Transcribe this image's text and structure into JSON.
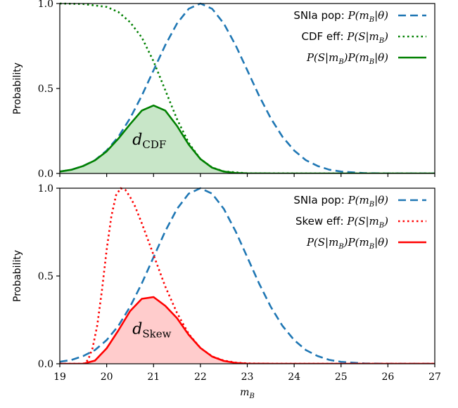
{
  "chart_data": [
    {
      "type": "line",
      "id": "top",
      "ylabel": "Probability",
      "xlim": [
        19,
        27
      ],
      "ylim": [
        0,
        1.0
      ],
      "yticks": [
        0.0,
        0.5,
        1.0
      ],
      "ytick_labels": [
        "0.0",
        "0.5",
        "1.0"
      ],
      "xticks": [
        19,
        20,
        21,
        22,
        23,
        24,
        25,
        26,
        27
      ],
      "xtick_labels_shown": false,
      "legend_position": "top-right",
      "annotation": {
        "main": "d",
        "sub": "CDF",
        "x": 20.55,
        "y": 0.17
      },
      "series": [
        {
          "name": "SNIa pop: P(m_B|θ)",
          "label_prefix": "SNIa pop:",
          "label_math": "P(m",
          "label_sub": "B",
          "label_tail": "|θ)",
          "color": "#1f77b4",
          "style": "dashed",
          "x": [
            19.0,
            19.25,
            19.5,
            19.75,
            20.0,
            20.25,
            20.5,
            20.75,
            21.0,
            21.25,
            21.5,
            21.75,
            22.0,
            22.25,
            22.5,
            22.75,
            23.0,
            23.25,
            23.5,
            23.75,
            24.0,
            24.25,
            24.5,
            24.75,
            25.0,
            25.5,
            26.0,
            27.0
          ],
          "y": [
            0.011,
            0.022,
            0.044,
            0.078,
            0.135,
            0.216,
            0.325,
            0.458,
            0.607,
            0.755,
            0.882,
            0.969,
            1.0,
            0.969,
            0.882,
            0.755,
            0.607,
            0.458,
            0.325,
            0.216,
            0.135,
            0.078,
            0.044,
            0.022,
            0.011,
            0.002,
            0.0,
            0.0
          ]
        },
        {
          "name": "CDF eff: P(S|m_B)",
          "label_prefix": "CDF eff:",
          "label_math": "P(S|m",
          "label_sub": "B",
          "label_tail": ")",
          "color": "#008000",
          "style": "dotted",
          "x": [
            19.0,
            19.5,
            20.0,
            20.25,
            20.5,
            20.75,
            21.0,
            21.25,
            21.5,
            21.75,
            22.0,
            22.25,
            22.5,
            23.0,
            24.0,
            27.0
          ],
          "y": [
            1.0,
            0.997,
            0.98,
            0.95,
            0.89,
            0.8,
            0.66,
            0.49,
            0.32,
            0.18,
            0.085,
            0.035,
            0.012,
            0.001,
            0.0,
            0.0
          ]
        },
        {
          "name": "P(S|m_B)P(m_B|θ)",
          "label_prefix": "",
          "label_math": "P(S|m",
          "label_sub": "B",
          "label_tail": ")P(m",
          "label_sub2": "B",
          "label_tail2": "|θ)",
          "color": "#008000",
          "style": "solid",
          "fill": "#c8e6c8",
          "x": [
            19.0,
            19.25,
            19.5,
            19.75,
            20.0,
            20.25,
            20.5,
            20.75,
            21.0,
            21.25,
            21.5,
            21.75,
            22.0,
            22.25,
            22.5,
            22.75,
            23.0,
            23.5,
            24.0,
            27.0
          ],
          "y": [
            0.011,
            0.022,
            0.044,
            0.077,
            0.13,
            0.205,
            0.29,
            0.37,
            0.4,
            0.37,
            0.28,
            0.17,
            0.085,
            0.034,
            0.011,
            0.003,
            0.001,
            0.0,
            0.0,
            0.0
          ]
        }
      ]
    },
    {
      "type": "line",
      "id": "bottom",
      "ylabel": "Probability",
      "xlabel_math": "m",
      "xlabel_sub": "B",
      "xlim": [
        19,
        27
      ],
      "ylim": [
        0,
        1.0
      ],
      "yticks": [
        0.0,
        0.5,
        1.0
      ],
      "ytick_labels": [
        "0.0",
        "0.5",
        "1.0"
      ],
      "xticks": [
        19,
        20,
        21,
        22,
        23,
        24,
        25,
        26,
        27
      ],
      "xtick_labels": [
        "19",
        "20",
        "21",
        "22",
        "23",
        "24",
        "25",
        "26",
        "27"
      ],
      "legend_position": "top-right",
      "annotation": {
        "main": "d",
        "sub": "Skew",
        "x": 20.55,
        "y": 0.17
      },
      "series": [
        {
          "name": "SNIa pop: P(m_B|θ)",
          "label_prefix": "SNIa pop:",
          "label_math": "P(m",
          "label_sub": "B",
          "label_tail": "|θ)",
          "color": "#1f77b4",
          "style": "dashed",
          "x": [
            19.0,
            19.25,
            19.5,
            19.75,
            20.0,
            20.25,
            20.5,
            20.75,
            21.0,
            21.25,
            21.5,
            21.75,
            22.0,
            22.25,
            22.5,
            22.75,
            23.0,
            23.25,
            23.5,
            23.75,
            24.0,
            24.25,
            24.5,
            24.75,
            25.0,
            25.5,
            26.0,
            27.0
          ],
          "y": [
            0.011,
            0.022,
            0.044,
            0.078,
            0.135,
            0.216,
            0.325,
            0.458,
            0.607,
            0.755,
            0.882,
            0.969,
            1.0,
            0.969,
            0.882,
            0.755,
            0.607,
            0.458,
            0.325,
            0.216,
            0.135,
            0.078,
            0.044,
            0.022,
            0.011,
            0.002,
            0.0,
            0.0
          ]
        },
        {
          "name": "Skew eff: P(S|m_B)",
          "label_prefix": "Skew eff:",
          "label_math": "P(S|m",
          "label_sub": "B",
          "label_tail": ")",
          "color": "#ff0000",
          "style": "dotted",
          "x": [
            19.0,
            19.5,
            19.6,
            19.7,
            19.8,
            19.9,
            20.0,
            20.1,
            20.2,
            20.3,
            20.4,
            20.5,
            20.6,
            20.75,
            21.0,
            21.25,
            21.5,
            21.75,
            22.0,
            22.25,
            22.5,
            22.75,
            23.0,
            23.5,
            24.0,
            27.0
          ],
          "y": [
            0.0,
            0.0,
            0.02,
            0.09,
            0.22,
            0.42,
            0.65,
            0.84,
            0.96,
            1.0,
            0.99,
            0.95,
            0.9,
            0.8,
            0.62,
            0.44,
            0.29,
            0.17,
            0.09,
            0.042,
            0.018,
            0.007,
            0.002,
            0.0,
            0.0,
            0.0
          ]
        },
        {
          "name": "P(S|m_B)P(m_B|θ)",
          "label_prefix": "",
          "label_math": "P(S|m",
          "label_sub": "B",
          "label_tail": ")P(m",
          "label_sub2": "B",
          "label_tail2": "|θ)",
          "color": "#ff0000",
          "style": "solid",
          "fill": "#ffcccc",
          "x": [
            19.0,
            19.5,
            19.75,
            20.0,
            20.25,
            20.5,
            20.75,
            21.0,
            21.25,
            21.5,
            21.75,
            22.0,
            22.25,
            22.5,
            22.75,
            23.0,
            23.5,
            24.0,
            27.0
          ],
          "y": [
            0.0,
            0.0,
            0.018,
            0.088,
            0.19,
            0.3,
            0.37,
            0.38,
            0.33,
            0.26,
            0.165,
            0.09,
            0.041,
            0.016,
            0.005,
            0.001,
            0.0,
            0.0,
            0.0
          ]
        }
      ]
    }
  ]
}
